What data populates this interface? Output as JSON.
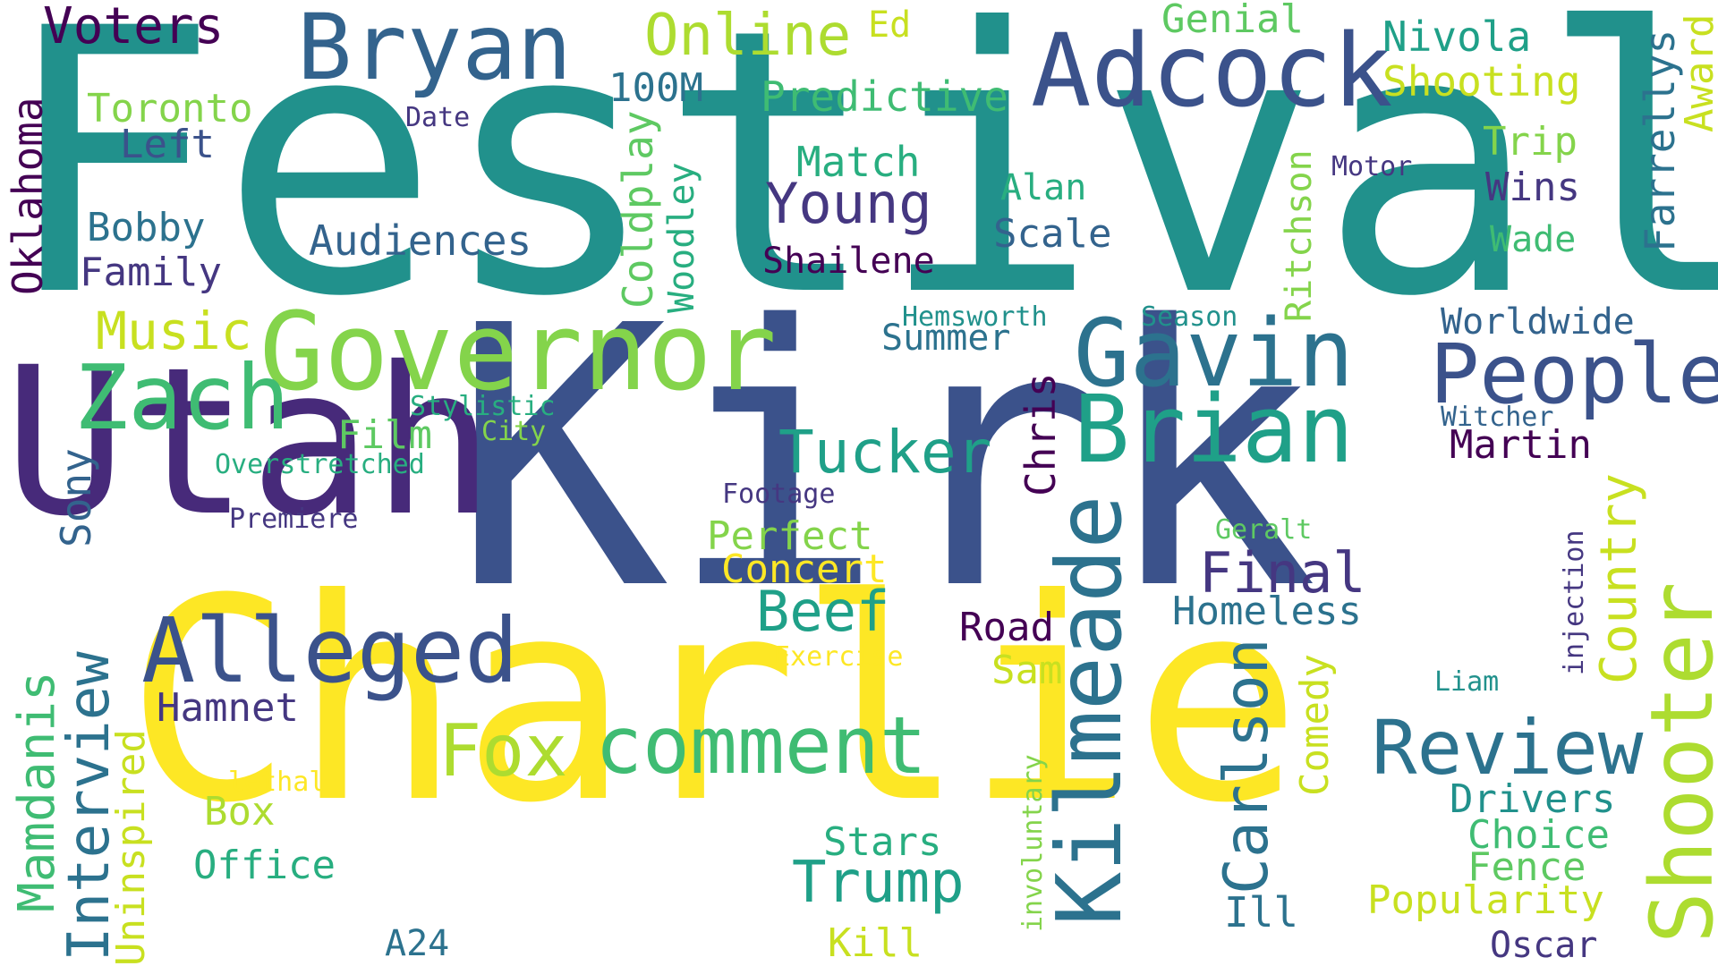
{
  "colors": {
    "background": "#ffffff",
    "dark_purple": "#440154",
    "indigo": "#472a7a",
    "purple_blue": "#453781",
    "slate_blue": "#3b528b",
    "steel_blue": "#33638d",
    "blue_teal": "#2c728e",
    "teal": "#21918c",
    "teal_green": "#1fa088",
    "sea_green": "#28ae80",
    "green": "#3fbc73",
    "mid_green": "#5ec962",
    "light_green": "#84d44b",
    "yellow_green": "#addc30",
    "lime": "#c8e020",
    "yellow": "#fde725"
  },
  "words": {
    "festival": "Festival",
    "kirk": "Kirk",
    "charlie": "Charlie",
    "utah": "Utah",
    "governor": "Governor",
    "bryan": "Bryan",
    "adcock": "Adcock",
    "gavin": "Gavin",
    "brian": "Brian",
    "kilmeade": "Kilmeade",
    "zach": "Zach",
    "people": "People",
    "shooter": "Shooter",
    "alleged": "Alleged",
    "comment": "comment",
    "review": "Review",
    "fox": "Fox",
    "tucker": "Tucker",
    "carlson": "Carlson",
    "trump": "Trump",
    "young": "Young",
    "beef": "Beef",
    "final": "Final",
    "country": "Country",
    "interview": "Interview",
    "mamdanis": "Mamdanis",
    "voters": "Voters",
    "online": "Online",
    "music": "Music",
    "audiences": "Audiences",
    "predictive": "Predictive",
    "shooting": "Shooting",
    "nivola": "Nivola",
    "genial": "Genial",
    "ed": "Ed",
    "toronto": "Toronto",
    "left": "Left",
    "bobby": "Bobby",
    "family": "Family",
    "oklahoma": "Oklahoma",
    "hundred_m": "100M",
    "date": "Date",
    "match": "Match",
    "shailene": "Shailene",
    "alan": "Alan",
    "scale": "Scale",
    "trip": "Trip",
    "wins": "Wins",
    "wade": "Wade",
    "motor": "Motor",
    "farrellys": "Farrellys",
    "award": "Award",
    "coldplay": "Coldplay",
    "woodley": "Woodley",
    "ritchson": "Ritchson",
    "hemsworth": "Hemsworth",
    "season": "Season",
    "summer": "Summer",
    "worldwide": "Worldwide",
    "witcher": "Witcher",
    "martin": "Martin",
    "chris": "Chris",
    "stylistic": "Stylistic",
    "city": "City",
    "film": "Film",
    "overstretched": "Overstretched",
    "sony": "Sony",
    "premiere": "Premiere",
    "footage": "Footage",
    "perfect": "Perfect",
    "concert": "Concert",
    "geralt": "Geralt",
    "injection": "injection",
    "homeless": "Homeless",
    "road": "Road",
    "exercise": "Exercise",
    "sam": "Sam",
    "comedy": "Comedy",
    "liam": "Liam",
    "hamnet": "Hamnet",
    "uninspired": "Uninspired",
    "lethal": "lethal",
    "box": "Box",
    "office": "Office",
    "involuntary": "involuntary",
    "drivers": "Drivers",
    "choice": "Choice",
    "fence": "Fence",
    "popularity": "Popularity",
    "stars": "Stars",
    "ill": "Ill",
    "a24": "A24",
    "kill": "Kill",
    "oscar": "Oscar"
  }
}
